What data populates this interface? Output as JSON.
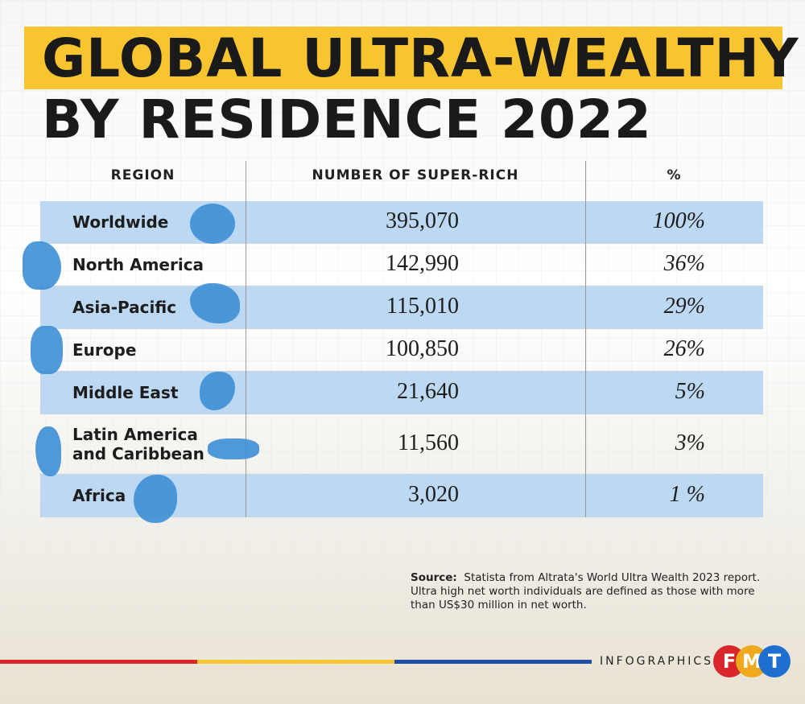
{
  "header": {
    "title": [
      "GLOBAL ULTRA-WEALTHY",
      "BY RESIDENCE 2022"
    ]
  },
  "table": {
    "columns": [
      "REGION",
      "NUMBER OF SUPER-RICH",
      "%"
    ],
    "rows": [
      [
        "Worldwide",
        "395,070",
        "100%"
      ],
      [
        "North America",
        "142,990",
        "36%"
      ],
      [
        "Asia-Pacific",
        "115,010",
        "29%"
      ],
      [
        "Europe",
        "100,850",
        "26%"
      ],
      [
        "Middle East",
        "21,640",
        "5%"
      ],
      [
        "Latin America and Caribbean",
        "11,560",
        "3%"
      ],
      [
        "Africa",
        "3,020",
        "1 %"
      ]
    ]
  },
  "source": {
    "label": "Source:",
    "text": "Statista from Altrata's World Ultra Wealth 2023 report. Ultra high net worth individuals are defined as those with more than US$30 million in net worth."
  },
  "footer": {
    "label": "INFOGRAPHICS",
    "logo": [
      "F",
      "M",
      "T"
    ]
  }
}
